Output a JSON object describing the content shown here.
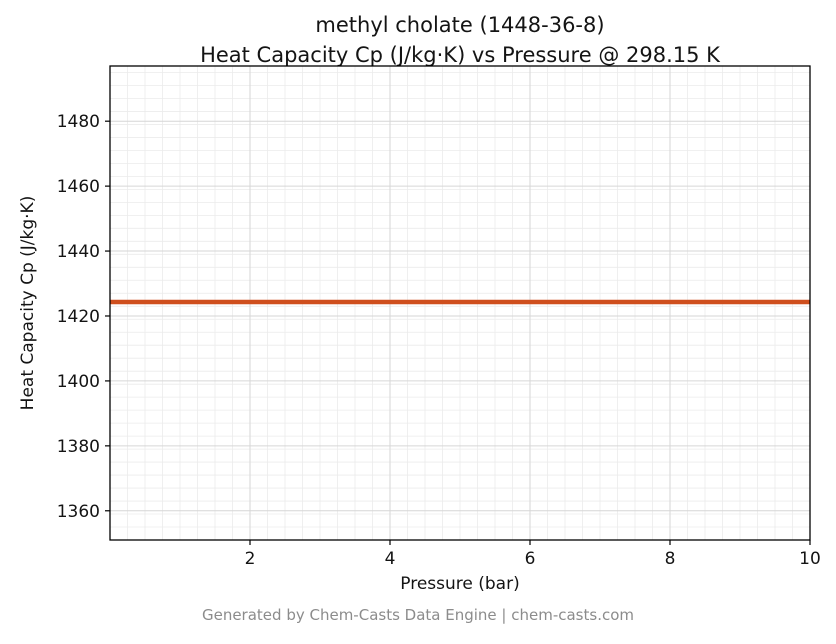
{
  "header": {
    "title_line1": "methyl cholate (1448-36-8)",
    "title_line2": "Heat Capacity Cp (J/kg·K) vs Pressure @ 298.15 K"
  },
  "footer": {
    "text": "Generated by Chem-Casts Data Engine | chem-casts.com"
  },
  "chart_data": {
    "type": "line",
    "title": "methyl cholate (1448-36-8)\nHeat Capacity Cp (J/kg·K) vs Pressure @ 298.15 K",
    "xlabel": "Pressure (bar)",
    "ylabel": "Heat Capacity Cp (J/kg·K)",
    "xlim": [
      0,
      10
    ],
    "ylim": [
      1351,
      1497
    ],
    "x_ticks": [
      2,
      4,
      6,
      8,
      10
    ],
    "y_ticks": [
      1360,
      1380,
      1400,
      1420,
      1440,
      1460,
      1480
    ],
    "x_minor_step": 0.25,
    "y_minor_step": 4,
    "grid": true,
    "legend": "none",
    "colors": {
      "line": "#cf4f1e",
      "grid_major": "#d6d6d6",
      "grid_minor": "#ebebeb",
      "axis": "#000000",
      "text": "#141414",
      "footer_text": "#8c8c8c"
    },
    "series": [
      {
        "name": "Heat Capacity Cp",
        "color": "#cf4f1e",
        "line_width": 4.5,
        "x": [
          0,
          10
        ],
        "y": [
          1424.3,
          1424.3
        ]
      }
    ]
  }
}
